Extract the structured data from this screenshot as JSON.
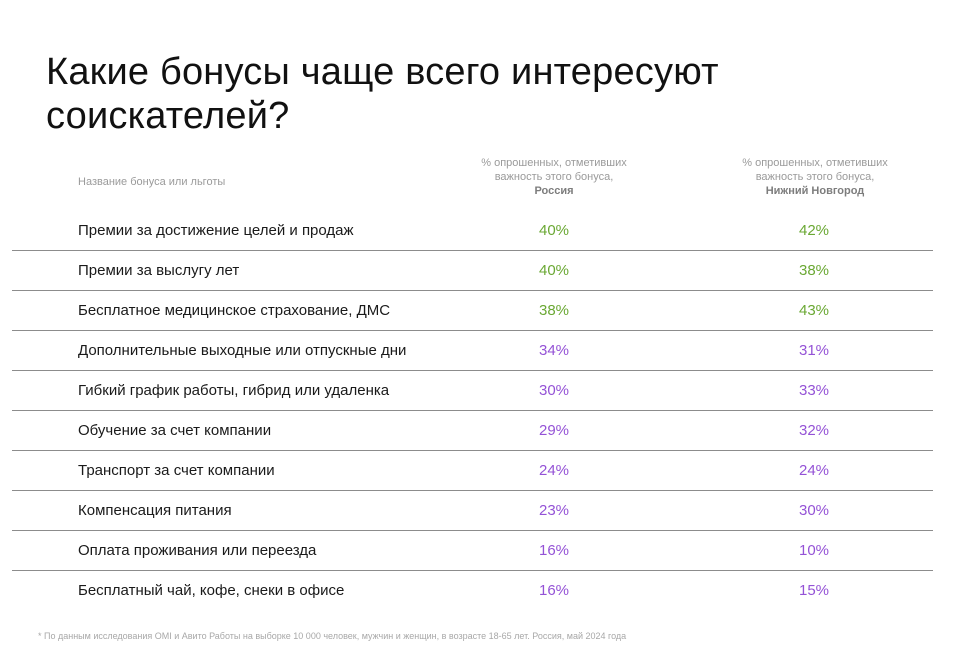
{
  "title": "Какие бонусы чаще всего интересуют соискателей?",
  "header": {
    "name_column": "Название бонуса или льготы",
    "russia": {
      "line1": "% опрошенных, отметивших",
      "line2": "важность этого бонуса,",
      "region": "Россия"
    },
    "nizhny": {
      "line1": "% опрошенных, отметивших",
      "line2": "важность этого бонуса,",
      "region": "Нижний Новгород"
    }
  },
  "colors": {
    "green": "#6aa833",
    "purple": "#9452d6"
  },
  "rows": [
    {
      "name": "Премии за достижение целей и продаж",
      "russia": "40%",
      "nizhny": "42%",
      "color": "green"
    },
    {
      "name": "Премии за выслугу лет",
      "russia": "40%",
      "nizhny": "38%",
      "color": "green"
    },
    {
      "name": "Бесплатное медицинское страхование, ДМС",
      "russia": "38%",
      "nizhny": "43%",
      "color": "green"
    },
    {
      "name": "Дополнительные выходные или отпускные дни",
      "russia": "34%",
      "nizhny": "31%",
      "color": "purple"
    },
    {
      "name": "Гибкий график работы, гибрид или удаленка",
      "russia": "30%",
      "nizhny": "33%",
      "color": "purple"
    },
    {
      "name": "Обучение за счет компании",
      "russia": "29%",
      "nizhny": "32%",
      "color": "purple"
    },
    {
      "name": "Транспорт за счет компании",
      "russia": "24%",
      "nizhny": "24%",
      "color": "purple"
    },
    {
      "name": "Компенсация питания",
      "russia": "23%",
      "nizhny": "30%",
      "color": "purple"
    },
    {
      "name": "Оплата проживания или переезда",
      "russia": "16%",
      "nizhny": "10%",
      "color": "purple"
    },
    {
      "name": "Бесплатный чай, кофе, снеки в офисе",
      "russia": "16%",
      "nizhny": "15%",
      "color": "purple"
    }
  ],
  "footnote": "* По данным исследования OMI и Авито Работы на выборке 10 000 человек, мужчин и женщин, в возрасте 18-65 лет. Россия, май 2024 года"
}
